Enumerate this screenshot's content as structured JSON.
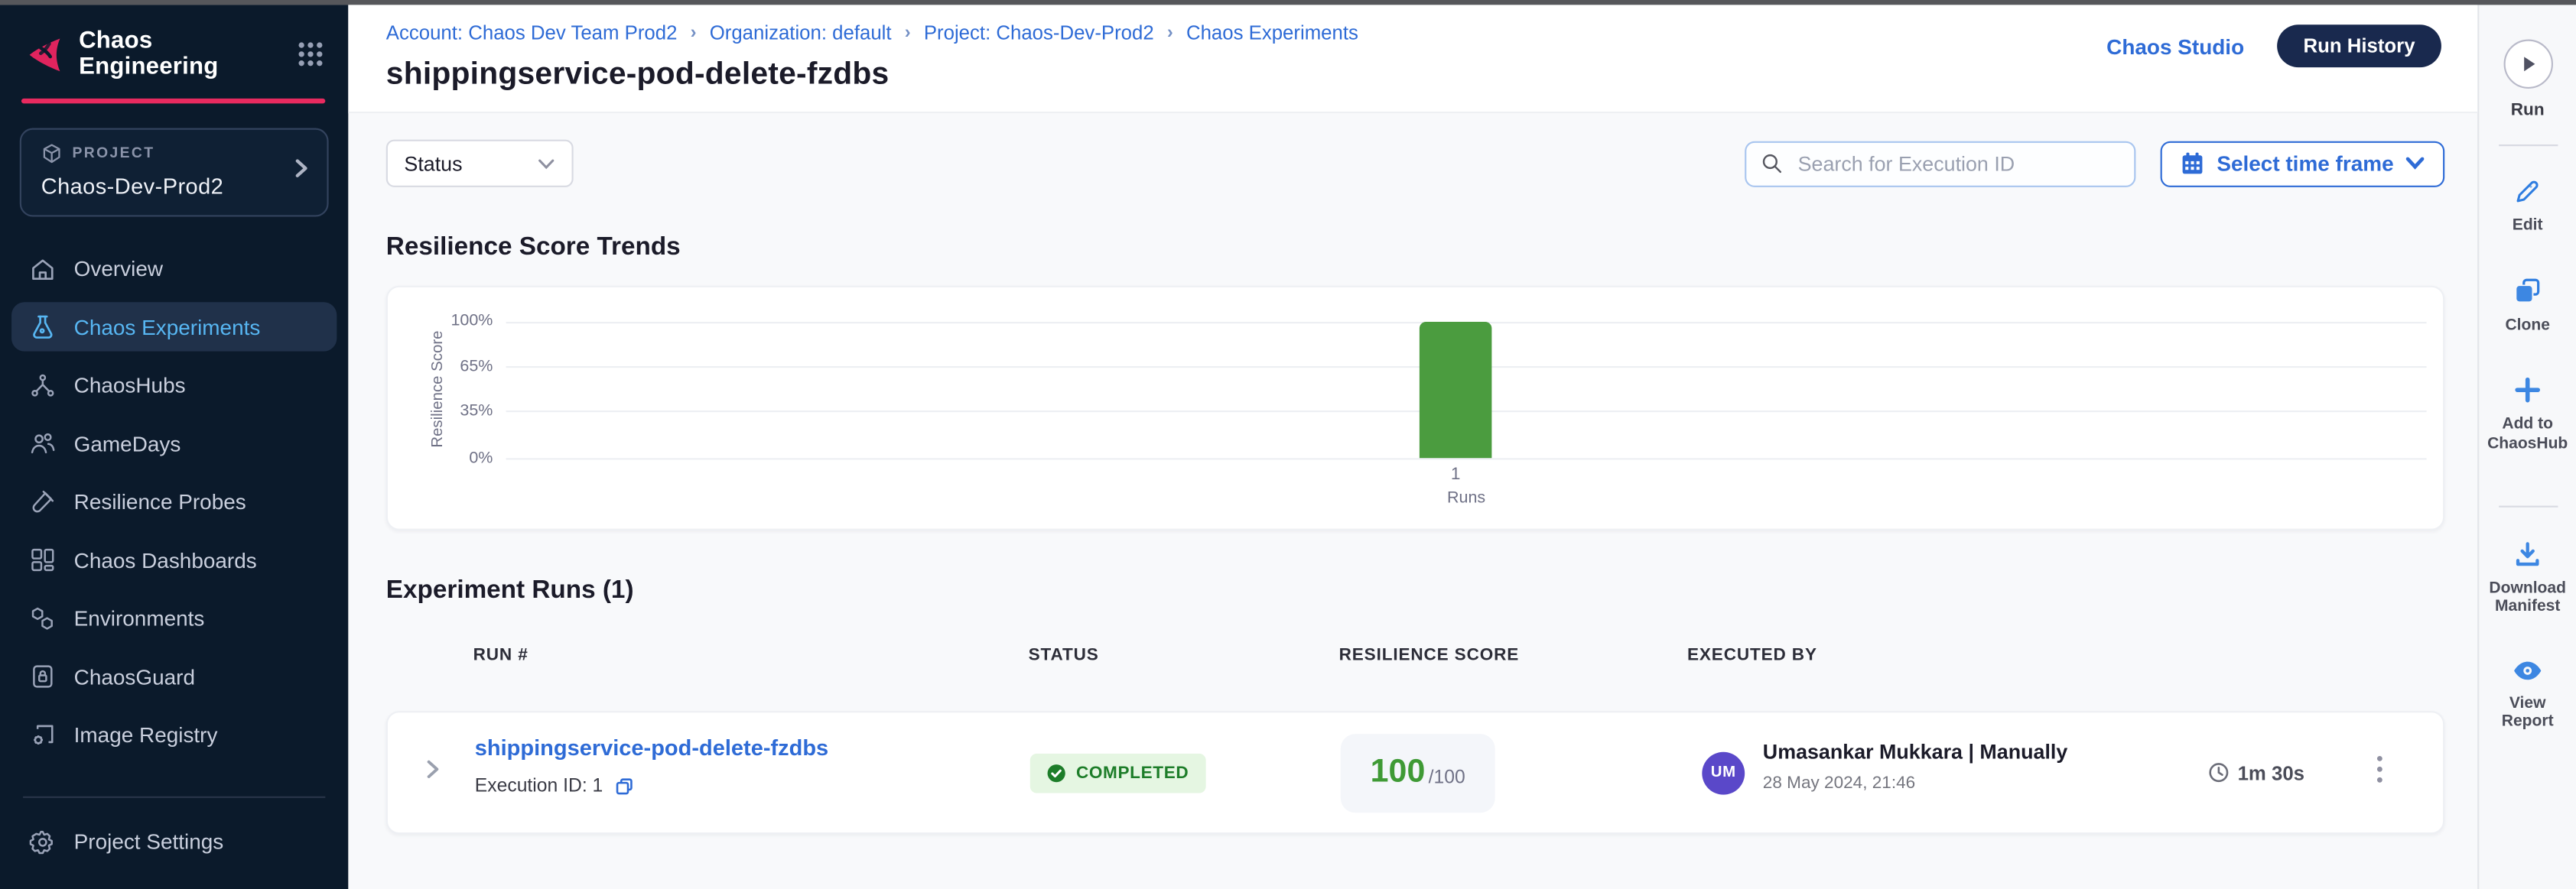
{
  "theme": {
    "navy": "#0b1a2b",
    "pink": "#e82a5f",
    "link_blue": "#2e6bd6",
    "button_blue": "#2e6bd6",
    "dark_button_navy": "#19294e",
    "green": "#4b9c3f",
    "badge_green_bg": "#e5f6e2",
    "badge_green_text": "#1d7d29",
    "avatar_purple": "#5a48c9",
    "active_nav_blue": "#57b6f2"
  },
  "sidebar": {
    "logo_icon": "chaos-brand-icon",
    "logo_text": "Chaos Engineering",
    "apps_grid_icon": "apps-grid-icon",
    "project": {
      "label": "PROJECT",
      "name": "Chaos-Dev-Prod2",
      "icon": "cube-icon"
    },
    "nav": [
      {
        "label": "Overview",
        "icon": "home-icon",
        "active": false
      },
      {
        "label": "Chaos Experiments",
        "icon": "flask-icon",
        "active": true
      },
      {
        "label": "ChaosHubs",
        "icon": "hub-nodes-icon",
        "active": false
      },
      {
        "label": "GameDays",
        "icon": "users-icon",
        "active": false
      },
      {
        "label": "Resilience Probes",
        "icon": "test-tube-icon",
        "active": false
      },
      {
        "label": "Chaos Dashboards",
        "icon": "dashboard-icon",
        "active": false
      },
      {
        "label": "Environments",
        "icon": "hexagons-icon",
        "active": false
      },
      {
        "label": "ChaosGuard",
        "icon": "lock-icon",
        "active": false
      },
      {
        "label": "Image Registry",
        "icon": "registry-gear-icon",
        "active": false
      }
    ],
    "settings": {
      "label": "Project Settings",
      "icon": "gear-icon"
    }
  },
  "breadcrumb": {
    "separator": "›",
    "items": [
      "Account: Chaos Dev Team Prod2",
      "Organization: default",
      "Project: Chaos-Dev-Prod2",
      "Chaos Experiments"
    ]
  },
  "header": {
    "title": "shippingservice-pod-delete-fzdbs",
    "chaos_studio_link": "Chaos Studio",
    "run_history_button": "Run History"
  },
  "filters": {
    "status_label": "Status",
    "search_placeholder": "Search for Execution ID",
    "timeframe_label": "Select time frame",
    "search_icon": "search-icon",
    "calendar_icon": "calendar-icon"
  },
  "trends": {
    "heading": "Resilience Score Trends",
    "chart_data": {
      "type": "bar",
      "title": "Resilience Score Trends",
      "categories": [
        "1"
      ],
      "values": [
        100
      ],
      "xlabel": "Runs",
      "ylabel": "Resilience Score",
      "yticks": [
        "100%",
        "65%",
        "35%",
        "0%"
      ],
      "ylim": [
        0,
        100
      ],
      "grid": true,
      "legend": false,
      "bar_color": "#4b9c3f"
    }
  },
  "runs": {
    "heading": "Experiment Runs (1)",
    "columns": [
      "RUN #",
      "STATUS",
      "RESILIENCE SCORE",
      "EXECUTED BY"
    ],
    "row": {
      "name": "shippingservice-pod-delete-fzdbs",
      "execution_id": "Execution ID: 1",
      "status": "COMPLETED",
      "score": "100",
      "score_suffix": "/100",
      "avatar_initials": "UM",
      "executed_by": "Umasankar Mukkara | Manually",
      "executed_at": "28 May 2024, 21:46",
      "duration": "1m 30s"
    }
  },
  "right_rail": {
    "run": {
      "label": "Run",
      "icon": "play-icon"
    },
    "actions": [
      {
        "label": "Edit",
        "icon": "pencil-icon"
      },
      {
        "label": "Clone",
        "icon": "clone-icon"
      },
      {
        "label": "Add to ChaosHub",
        "icon": "plus-icon"
      },
      {
        "label": "Download Manifest",
        "icon": "download-icon"
      },
      {
        "label": "View Report",
        "icon": "eye-icon"
      }
    ]
  }
}
